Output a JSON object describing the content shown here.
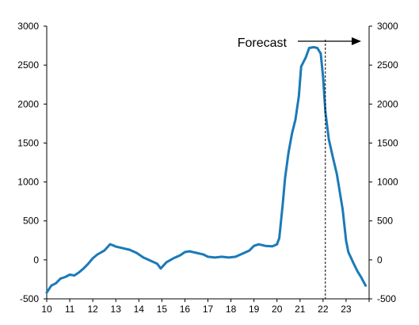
{
  "chart_data": {
    "type": "line",
    "xlim": [
      10,
      24
    ],
    "ylim": [
      -500,
      3000
    ],
    "x_tick_labels": [
      "10",
      "11",
      "12",
      "13",
      "14",
      "15",
      "16",
      "17",
      "18",
      "19",
      "20",
      "21",
      "22",
      "23"
    ],
    "y_tick_labels": [
      "-500",
      "0",
      "500",
      "1000",
      "1500",
      "2000",
      "2500",
      "3000"
    ],
    "y_ticks": [
      -500,
      0,
      500,
      1000,
      1500,
      2000,
      2500,
      3000
    ],
    "grid": false,
    "secondary_y_axis": true,
    "series": [
      {
        "color": "#1a7ab8",
        "x": [
          10,
          10.2,
          10.4,
          10.6,
          10.8,
          11.0,
          11.2,
          11.4,
          11.6,
          11.8,
          12.0,
          12.2,
          12.5,
          12.75,
          12.9,
          13.0,
          13.3,
          13.6,
          13.9,
          14.2,
          14.5,
          14.8,
          14.95,
          15.2,
          15.5,
          15.8,
          16.0,
          16.2,
          16.5,
          16.8,
          17.0,
          17.3,
          17.6,
          17.9,
          18.2,
          18.5,
          18.8,
          19.0,
          19.2,
          19.5,
          19.8,
          20.0,
          20.1,
          20.25,
          20.35,
          20.5,
          20.65,
          20.8,
          20.95,
          21.05,
          21.25,
          21.4,
          21.6,
          21.75,
          21.9,
          22.0,
          22.1,
          22.25,
          22.4,
          22.6,
          22.85,
          23.0,
          23.1,
          23.3,
          23.5,
          23.65,
          23.85
        ],
        "values": [
          -420,
          -330,
          -300,
          -240,
          -220,
          -190,
          -200,
          -160,
          -110,
          -50,
          20,
          70,
          120,
          200,
          185,
          170,
          150,
          130,
          90,
          30,
          -10,
          -50,
          -110,
          -30,
          20,
          60,
          100,
          110,
          90,
          70,
          40,
          30,
          40,
          30,
          40,
          80,
          120,
          180,
          200,
          180,
          175,
          200,
          280,
          720,
          1050,
          1380,
          1620,
          1800,
          2100,
          2480,
          2600,
          2720,
          2730,
          2720,
          2650,
          2350,
          1900,
          1550,
          1350,
          1100,
          650,
          250,
          100,
          -30,
          -150,
          -220,
          -330
        ]
      }
    ],
    "annotations": [
      {
        "text": "Forecast",
        "x_start": 22.1
      }
    ]
  }
}
